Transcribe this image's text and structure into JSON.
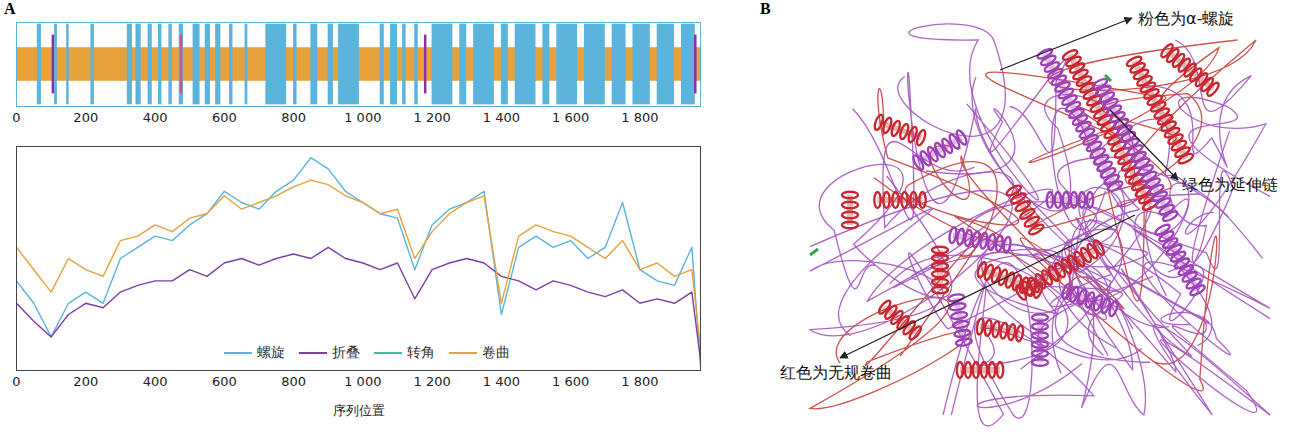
{
  "panels": [
    "A",
    "B"
  ],
  "chart_data": [
    {
      "type": "track",
      "xlim": [
        0,
        1975
      ],
      "xticks": [
        0,
        200,
        400,
        600,
        800,
        {
          "value": 1000,
          "label": "1 000"
        },
        {
          "value": 1200,
          "label": "1 200"
        },
        {
          "value": 1400,
          "label": "1 400"
        },
        {
          "value": 1600,
          "label": "1 600"
        },
        {
          "value": 1800,
          "label": "1 800"
        }
      ],
      "tick_labels": "x",
      "series": [
        {
          "type": "band",
          "color": "#e6a23c",
          "values": [
            [
              0,
              1975
            ]
          ]
        },
        {
          "type": "span",
          "color": "#5ab4dc",
          "values": [
            [
              60,
              72
            ],
            [
              110,
              118
            ],
            [
              145,
              152
            ],
            [
              215,
              225
            ],
            [
              320,
              335
            ],
            [
              345,
              360
            ],
            [
              380,
              392
            ],
            [
              410,
              420
            ],
            [
              440,
              450
            ],
            [
              470,
              482
            ],
            [
              510,
              530
            ],
            [
              545,
              560
            ],
            [
              575,
              590
            ],
            [
              615,
              625
            ],
            [
              660,
              668
            ],
            [
              720,
              780
            ],
            [
              800,
              810
            ],
            [
              850,
              870
            ],
            [
              900,
              915
            ],
            [
              930,
              990
            ],
            [
              1050,
              1062
            ],
            [
              1080,
              1100
            ],
            [
              1115,
              1125
            ],
            [
              1150,
              1160
            ],
            [
              1200,
              1260
            ],
            [
              1280,
              1300
            ],
            [
              1320,
              1380
            ],
            [
              1400,
              1420
            ],
            [
              1440,
              1500
            ],
            [
              1520,
              1540
            ],
            [
              1560,
              1620
            ],
            [
              1640,
              1700
            ],
            [
              1720,
              1760
            ],
            [
              1780,
              1830
            ],
            [
              1850,
              1900
            ],
            [
              1920,
              1960
            ]
          ]
        },
        {
          "type": "rule",
          "color": "#8b2fa8",
          "values": [
            105,
            1180,
            1960
          ]
        },
        {
          "type": "rule",
          "color": "#d0508a",
          "values": [
            475
          ]
        }
      ]
    },
    {
      "type": "line",
      "xlabel": "序列位置",
      "x": [
        0,
        50,
        100,
        150,
        200,
        250,
        300,
        350,
        400,
        450,
        500,
        550,
        600,
        650,
        700,
        750,
        800,
        850,
        900,
        950,
        1000,
        1050,
        1100,
        1150,
        1200,
        1250,
        1300,
        1350,
        1400,
        1450,
        1500,
        1550,
        1600,
        1650,
        1700,
        1750,
        1800,
        1850,
        1900,
        1950,
        1975
      ],
      "xlim": [
        0,
        1975
      ],
      "xticks": [
        0,
        200,
        400,
        600,
        800,
        {
          "value": 1000,
          "label": "1 000"
        },
        {
          "value": 1200,
          "label": "1 200"
        },
        {
          "value": 1400,
          "label": "1 400"
        },
        {
          "value": 1600,
          "label": "1 600"
        },
        {
          "value": 1800,
          "label": "1 800"
        }
      ],
      "ylim": [
        0,
        1
      ],
      "yticks": [],
      "tick_labels": "x",
      "legend": "bottom",
      "series": [
        {
          "name": "螺旋",
          "color": "#5ab4dc",
          "values": [
            0.4,
            0.3,
            0.15,
            0.3,
            0.35,
            0.3,
            0.5,
            0.55,
            0.6,
            0.58,
            0.65,
            0.7,
            0.8,
            0.75,
            0.72,
            0.8,
            0.85,
            0.95,
            0.9,
            0.8,
            0.75,
            0.7,
            0.68,
            0.45,
            0.65,
            0.72,
            0.75,
            0.8,
            0.25,
            0.55,
            0.6,
            0.55,
            0.58,
            0.5,
            0.55,
            0.75,
            0.45,
            0.4,
            0.38,
            0.55,
            0.02
          ]
        },
        {
          "name": "折叠",
          "color": "#7b3fa8",
          "values": [
            0.3,
            0.22,
            0.15,
            0.25,
            0.3,
            0.28,
            0.35,
            0.38,
            0.4,
            0.4,
            0.45,
            0.42,
            0.48,
            0.5,
            0.47,
            0.5,
            0.52,
            0.5,
            0.55,
            0.5,
            0.48,
            0.45,
            0.48,
            0.32,
            0.45,
            0.48,
            0.5,
            0.48,
            0.42,
            0.4,
            0.36,
            0.4,
            0.38,
            0.35,
            0.33,
            0.36,
            0.3,
            0.32,
            0.3,
            0.35,
            0.05
          ]
        },
        {
          "name": "转角",
          "color": "#3bbfa0",
          "values": [
            null,
            null,
            null,
            null,
            null,
            null,
            null,
            null,
            null,
            null,
            null,
            null,
            null,
            null,
            null,
            null,
            null,
            null,
            null,
            null,
            null,
            null,
            null,
            null,
            null,
            null,
            null,
            null,
            null,
            null,
            null,
            null,
            null,
            null,
            null,
            null,
            null,
            null,
            null,
            null,
            null
          ]
        },
        {
          "name": "卷曲",
          "color": "#e6a23c",
          "values": [
            0.55,
            0.45,
            0.35,
            0.5,
            0.45,
            0.42,
            0.58,
            0.6,
            0.65,
            0.62,
            0.68,
            0.7,
            0.78,
            0.72,
            0.75,
            0.78,
            0.82,
            0.85,
            0.83,
            0.78,
            0.75,
            0.7,
            0.72,
            0.5,
            0.62,
            0.7,
            0.75,
            0.78,
            0.3,
            0.6,
            0.65,
            0.62,
            0.6,
            0.55,
            0.5,
            0.58,
            0.45,
            0.48,
            0.42,
            0.45,
            0.1
          ]
        }
      ]
    }
  ],
  "structure": {
    "labels": [
      "粉色为α-螺旋",
      "绿色为延伸链",
      "红色为无规卷曲"
    ]
  }
}
